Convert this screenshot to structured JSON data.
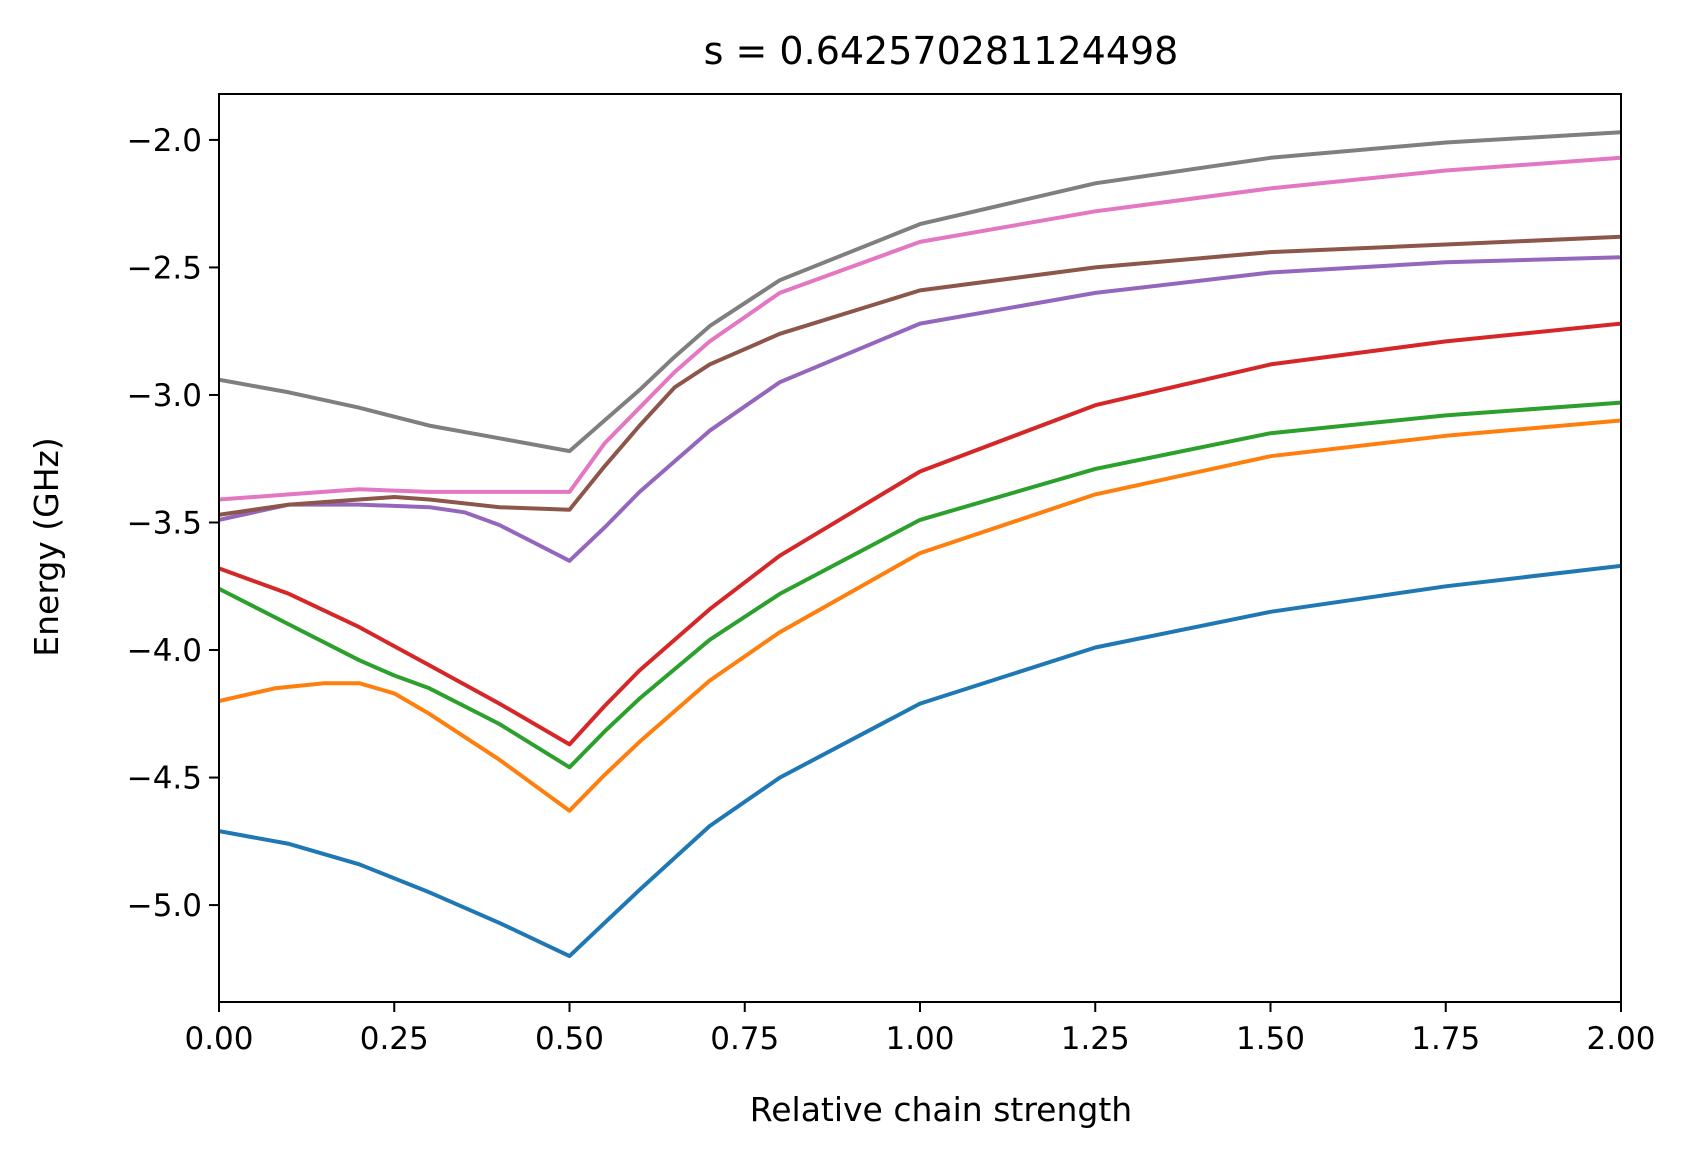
{
  "chart_data": {
    "type": "line",
    "title": "s = 0.642570281124498",
    "xlabel": "Relative chain strength",
    "ylabel": "Energy (GHz)",
    "xlim": [
      0,
      2
    ],
    "ylim": [
      -5.38,
      -1.82
    ],
    "xticks": [
      0,
      0.25,
      0.5,
      0.75,
      1.0,
      1.25,
      1.5,
      1.75,
      2.0
    ],
    "xtick_labels": [
      "0.00",
      "0.25",
      "0.50",
      "0.75",
      "1.00",
      "1.25",
      "1.50",
      "1.75",
      "2.00"
    ],
    "yticks": [
      -2.0,
      -2.5,
      -3.0,
      -3.5,
      -4.0,
      -4.5,
      -5.0
    ],
    "ytick_labels": [
      "−2.0",
      "−2.5",
      "−3.0",
      "−3.5",
      "−4.0",
      "−4.5",
      "−5.0"
    ],
    "grid": false,
    "legend": false,
    "series": [
      {
        "color": "#1f77b4",
        "x": [
          0,
          0.1,
          0.2,
          0.3,
          0.4,
          0.5,
          0.55,
          0.6,
          0.7,
          0.8,
          1.0,
          1.25,
          1.5,
          1.75,
          2.0
        ],
        "y": [
          -4.71,
          -4.76,
          -4.84,
          -4.95,
          -5.07,
          -5.2,
          -5.07,
          -4.94,
          -4.69,
          -4.5,
          -4.21,
          -3.99,
          -3.85,
          -3.75,
          -3.67
        ]
      },
      {
        "color": "#ff7f0e",
        "x": [
          0,
          0.08,
          0.15,
          0.2,
          0.25,
          0.3,
          0.4,
          0.5,
          0.55,
          0.6,
          0.7,
          0.8,
          1.0,
          1.25,
          1.5,
          1.75,
          2.0
        ],
        "y": [
          -4.2,
          -4.15,
          -4.13,
          -4.13,
          -4.17,
          -4.25,
          -4.43,
          -4.63,
          -4.49,
          -4.36,
          -4.12,
          -3.93,
          -3.62,
          -3.39,
          -3.24,
          -3.16,
          -3.1
        ]
      },
      {
        "color": "#2ca02c",
        "x": [
          0,
          0.1,
          0.2,
          0.25,
          0.3,
          0.4,
          0.5,
          0.55,
          0.6,
          0.7,
          0.8,
          1.0,
          1.25,
          1.5,
          1.75,
          2.0
        ],
        "y": [
          -3.76,
          -3.9,
          -4.04,
          -4.1,
          -4.15,
          -4.29,
          -4.46,
          -4.32,
          -4.19,
          -3.96,
          -3.78,
          -3.49,
          -3.29,
          -3.15,
          -3.08,
          -3.03
        ]
      },
      {
        "color": "#d62728",
        "x": [
          0,
          0.1,
          0.2,
          0.3,
          0.4,
          0.5,
          0.55,
          0.6,
          0.7,
          0.8,
          1.0,
          1.25,
          1.5,
          1.75,
          2.0
        ],
        "y": [
          -3.68,
          -3.78,
          -3.91,
          -4.06,
          -4.21,
          -4.37,
          -4.22,
          -4.08,
          -3.84,
          -3.63,
          -3.3,
          -3.04,
          -2.88,
          -2.79,
          -2.72
        ]
      },
      {
        "color": "#9467bd",
        "x": [
          0,
          0.1,
          0.2,
          0.3,
          0.35,
          0.4,
          0.45,
          0.5,
          0.55,
          0.6,
          0.7,
          0.8,
          1.0,
          1.25,
          1.5,
          1.75,
          2.0
        ],
        "y": [
          -3.49,
          -3.43,
          -3.43,
          -3.44,
          -3.46,
          -3.51,
          -3.58,
          -3.65,
          -3.52,
          -3.38,
          -3.14,
          -2.95,
          -2.72,
          -2.6,
          -2.52,
          -2.48,
          -2.46
        ]
      },
      {
        "color": "#8c564b",
        "x": [
          0,
          0.1,
          0.2,
          0.25,
          0.3,
          0.4,
          0.5,
          0.55,
          0.6,
          0.65,
          0.7,
          0.8,
          1.0,
          1.25,
          1.5,
          1.75,
          2.0
        ],
        "y": [
          -3.47,
          -3.43,
          -3.41,
          -3.4,
          -3.41,
          -3.44,
          -3.45,
          -3.28,
          -3.12,
          -2.97,
          -2.88,
          -2.76,
          -2.59,
          -2.5,
          -2.44,
          -2.41,
          -2.38
        ]
      },
      {
        "color": "#e377c2",
        "x": [
          0,
          0.1,
          0.2,
          0.3,
          0.4,
          0.5,
          0.55,
          0.6,
          0.65,
          0.7,
          0.8,
          1.0,
          1.25,
          1.5,
          1.75,
          2.0
        ],
        "y": [
          -3.41,
          -3.39,
          -3.37,
          -3.38,
          -3.38,
          -3.38,
          -3.19,
          -3.05,
          -2.91,
          -2.79,
          -2.6,
          -2.4,
          -2.28,
          -2.19,
          -2.12,
          -2.07
        ]
      },
      {
        "color": "#7f7f7f",
        "x": [
          0,
          0.1,
          0.2,
          0.3,
          0.4,
          0.5,
          0.55,
          0.6,
          0.65,
          0.7,
          0.8,
          1.0,
          1.25,
          1.5,
          1.75,
          2.0
        ],
        "y": [
          -2.94,
          -2.99,
          -3.05,
          -3.12,
          -3.17,
          -3.22,
          -3.1,
          -2.98,
          -2.85,
          -2.73,
          -2.55,
          -2.33,
          -2.17,
          -2.07,
          -2.01,
          -1.97
        ]
      }
    ]
  }
}
